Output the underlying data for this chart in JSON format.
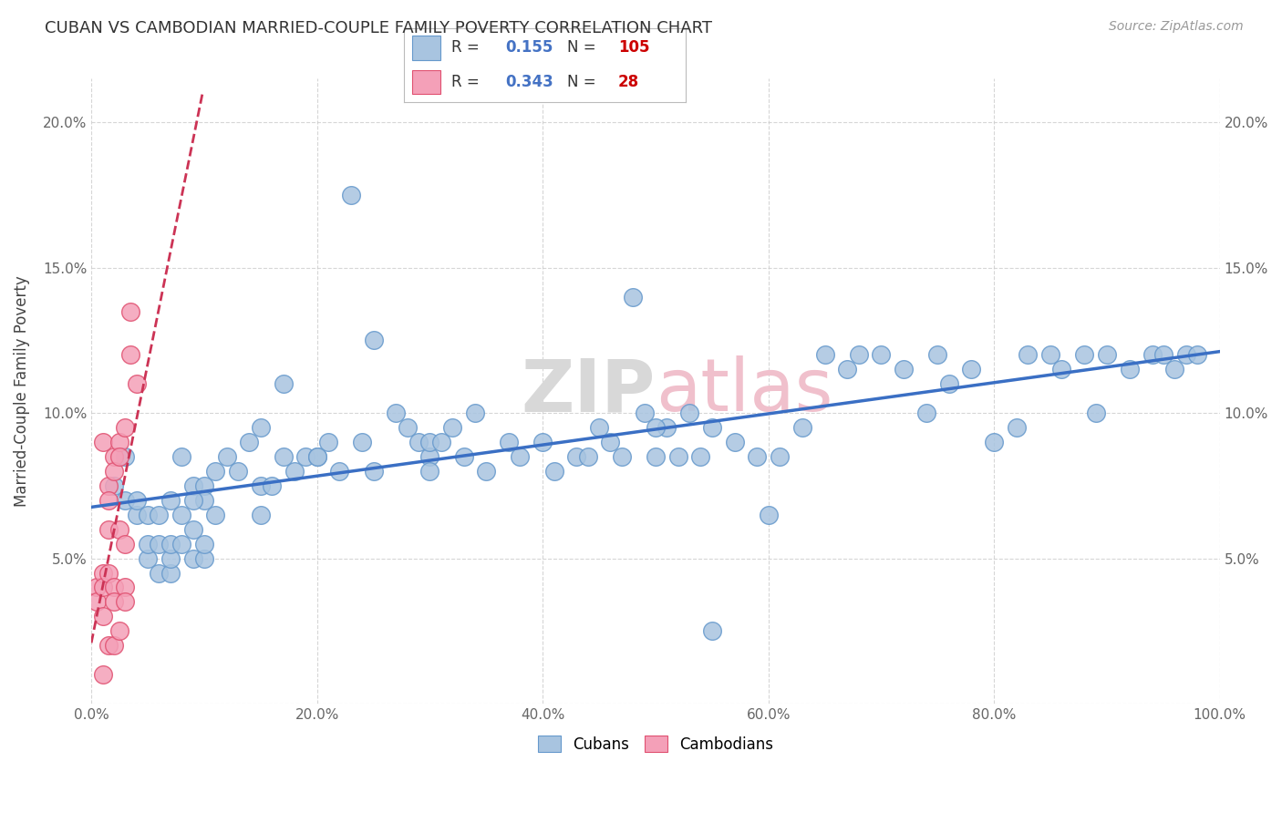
{
  "title": "CUBAN VS CAMBODIAN MARRIED-COUPLE FAMILY POVERTY CORRELATION CHART",
  "source": "Source: ZipAtlas.com",
  "ylabel": "Married-Couple Family Poverty",
  "watermark": "ZIPAtlas",
  "xlim": [
    0.0,
    1.0
  ],
  "ylim": [
    0.0,
    0.215
  ],
  "xticks": [
    0.0,
    0.2,
    0.4,
    0.6,
    0.8,
    1.0
  ],
  "xticklabels": [
    "0.0%",
    "20.0%",
    "40.0%",
    "60.0%",
    "80.0%",
    "100.0%"
  ],
  "yticks": [
    0.0,
    0.05,
    0.1,
    0.15,
    0.2
  ],
  "yticklabels": [
    "",
    "5.0%",
    "10.0%",
    "15.0%",
    "20.0%"
  ],
  "cuban_color": "#a8c4e0",
  "cambodian_color": "#f4a0b8",
  "cuban_edge_color": "#6699cc",
  "cambodian_edge_color": "#e05070",
  "cuban_R": 0.155,
  "cuban_N": 105,
  "cambodian_R": 0.343,
  "cambodian_N": 28,
  "cuban_trend_color": "#3a6fc4",
  "cambodian_trend_color": "#cc3355",
  "legend_R_color": "#4472c4",
  "legend_N_color": "#cc0000",
  "background_color": "#ffffff",
  "grid_color": "#cccccc",
  "title_color": "#333333",
  "cuban_scatter_x": [
    0.02,
    0.03,
    0.03,
    0.04,
    0.04,
    0.05,
    0.05,
    0.05,
    0.06,
    0.06,
    0.06,
    0.07,
    0.07,
    0.07,
    0.07,
    0.08,
    0.08,
    0.09,
    0.09,
    0.09,
    0.1,
    0.1,
    0.1,
    0.11,
    0.11,
    0.12,
    0.13,
    0.14,
    0.15,
    0.15,
    0.17,
    0.18,
    0.19,
    0.2,
    0.21,
    0.22,
    0.23,
    0.24,
    0.25,
    0.27,
    0.28,
    0.29,
    0.3,
    0.3,
    0.31,
    0.32,
    0.33,
    0.34,
    0.35,
    0.37,
    0.38,
    0.4,
    0.41,
    0.43,
    0.44,
    0.45,
    0.46,
    0.47,
    0.48,
    0.49,
    0.5,
    0.51,
    0.52,
    0.53,
    0.54,
    0.55,
    0.57,
    0.59,
    0.6,
    0.61,
    0.63,
    0.65,
    0.67,
    0.68,
    0.7,
    0.72,
    0.74,
    0.75,
    0.76,
    0.78,
    0.8,
    0.82,
    0.83,
    0.85,
    0.86,
    0.88,
    0.89,
    0.9,
    0.92,
    0.94,
    0.95,
    0.96,
    0.97,
    0.98,
    0.5,
    0.55,
    0.2,
    0.25,
    0.3,
    0.1,
    0.08,
    0.09,
    0.15,
    0.16,
    0.17
  ],
  "cuban_scatter_y": [
    0.075,
    0.07,
    0.085,
    0.065,
    0.07,
    0.05,
    0.055,
    0.065,
    0.045,
    0.055,
    0.065,
    0.045,
    0.05,
    0.055,
    0.07,
    0.055,
    0.085,
    0.05,
    0.06,
    0.075,
    0.05,
    0.055,
    0.075,
    0.065,
    0.08,
    0.085,
    0.08,
    0.09,
    0.065,
    0.095,
    0.11,
    0.08,
    0.085,
    0.085,
    0.09,
    0.08,
    0.175,
    0.09,
    0.125,
    0.1,
    0.095,
    0.09,
    0.085,
    0.09,
    0.09,
    0.095,
    0.085,
    0.1,
    0.08,
    0.09,
    0.085,
    0.09,
    0.08,
    0.085,
    0.085,
    0.095,
    0.09,
    0.085,
    0.14,
    0.1,
    0.085,
    0.095,
    0.085,
    0.1,
    0.085,
    0.025,
    0.09,
    0.085,
    0.065,
    0.085,
    0.095,
    0.12,
    0.115,
    0.12,
    0.12,
    0.115,
    0.1,
    0.12,
    0.11,
    0.115,
    0.09,
    0.095,
    0.12,
    0.12,
    0.115,
    0.12,
    0.1,
    0.12,
    0.115,
    0.12,
    0.12,
    0.115,
    0.12,
    0.12,
    0.095,
    0.095,
    0.085,
    0.08,
    0.08,
    0.07,
    0.065,
    0.07,
    0.075,
    0.075,
    0.085
  ],
  "cambodian_scatter_x": [
    0.005,
    0.005,
    0.01,
    0.01,
    0.01,
    0.01,
    0.01,
    0.015,
    0.015,
    0.015,
    0.015,
    0.015,
    0.02,
    0.02,
    0.02,
    0.02,
    0.02,
    0.025,
    0.025,
    0.025,
    0.025,
    0.03,
    0.03,
    0.03,
    0.03,
    0.035,
    0.035,
    0.04
  ],
  "cambodian_scatter_y": [
    0.04,
    0.035,
    0.09,
    0.045,
    0.04,
    0.03,
    0.01,
    0.075,
    0.07,
    0.06,
    0.045,
    0.02,
    0.085,
    0.08,
    0.04,
    0.035,
    0.02,
    0.09,
    0.085,
    0.06,
    0.025,
    0.095,
    0.055,
    0.04,
    0.035,
    0.135,
    0.12,
    0.11
  ]
}
